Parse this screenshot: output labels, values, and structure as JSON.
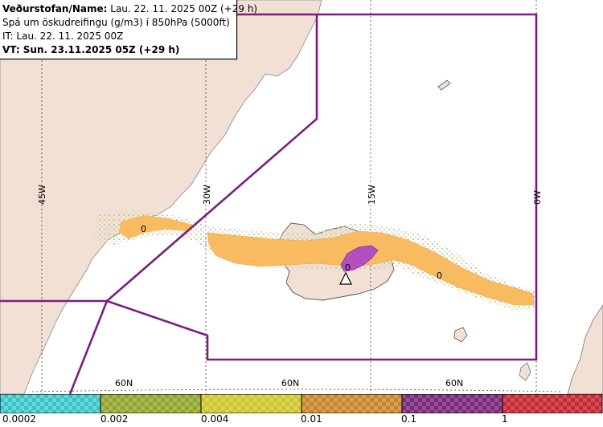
{
  "info": {
    "org_label": "Veðurstofan/Name:",
    "run_text": "Lau. 22. 11. 2025 00Z (+29 h)",
    "product": "Spá um öskudreifingu (g/m3) í 850hPa (5000ft)",
    "it_text": "IT: Lau. 22. 11. 2025 00Z",
    "vt_text": "VT: Sun. 23.11.2025 05Z (+29 h)"
  },
  "axes": {
    "lon_labels": [
      "45W",
      "30W",
      "15W",
      "0W"
    ],
    "lat_labels": [
      "60N",
      "60N",
      "60N"
    ],
    "contour_labels": [
      "0",
      "0",
      "0"
    ]
  },
  "legend": {
    "swatches": [
      {
        "color": "#36c4c6"
      },
      {
        "color": "#8fa52c"
      },
      {
        "color": "#cfc62e"
      },
      {
        "color": "#c8862c"
      },
      {
        "color": "#7a2b7c"
      },
      {
        "color": "#c62a32"
      }
    ],
    "labels": [
      "0.0002",
      "0.002",
      "0.004",
      "0.01",
      "0.1",
      "1"
    ]
  },
  "colors": {
    "land": "#f1e0d3",
    "fir_boundary": "#7b1e7e",
    "ash_light": "#f8bb61",
    "ash_heavy": "#b34fbf"
  }
}
